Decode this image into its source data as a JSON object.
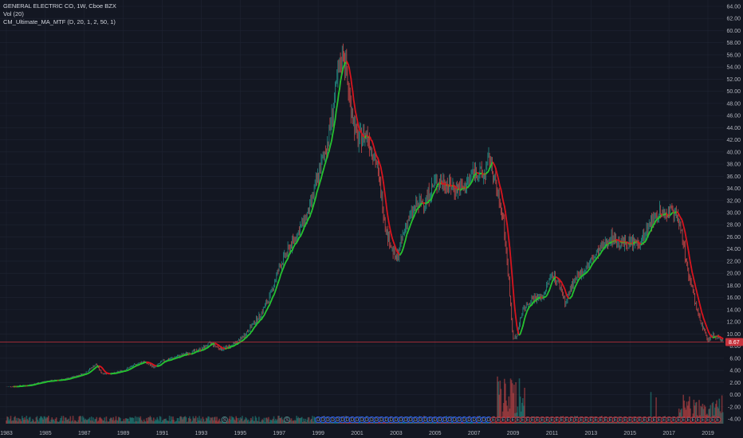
{
  "header": {
    "symbol_line": "GENERAL ELECTRIC CO, 1W, Cboe BZX",
    "volume_line": "Vol (20)",
    "indicator_line": "CM_Ultimate_MA_MTF (D, 20, 1, 2, 50, 1)"
  },
  "price_label": "8.67",
  "colors": {
    "background": "#131722",
    "grid": "#1f2433",
    "ma_up": "#26c030",
    "ma_down": "#d7141e",
    "candle_up": "#26a69a",
    "candle_down": "#ef5350",
    "price_line": "#c8323c",
    "price_tag": "#c8323c",
    "marker_dividend": "#2962ff",
    "marker_split": "#4c8d8a",
    "marker_earnings": "#c8323c"
  },
  "markers": {
    "split_label": "S",
    "dividend_label": "D",
    "earnings_label": "E"
  },
  "chart_data": {
    "type": "line",
    "title": "GENERAL ELECTRIC CO, 1W, Cboe BZX",
    "x_ticks": [
      "1983",
      "1985",
      "1987",
      "1989",
      "1991",
      "1993",
      "1995",
      "1997",
      "1999",
      "2001",
      "2003",
      "2005",
      "2007",
      "2009",
      "2011",
      "2013",
      "2015",
      "2017",
      "2019"
    ],
    "y_ticks": [
      "-4.00",
      "-2.00",
      "0.00",
      "2.00",
      "4.00",
      "6.00",
      "8.00",
      "10.00",
      "12.00",
      "14.00",
      "16.00",
      "18.00",
      "20.00",
      "22.00",
      "24.00",
      "26.00",
      "28.00",
      "30.00",
      "32.00",
      "34.00",
      "36.00",
      "38.00",
      "40.00",
      "42.00",
      "44.00",
      "46.00",
      "48.00",
      "50.00",
      "52.00",
      "54.00",
      "56.00",
      "58.00",
      "60.00",
      "62.00",
      "64.00"
    ],
    "xlim": [
      1983.0,
      2019.8
    ],
    "ylim": [
      -4,
      64
    ],
    "current_price": 8.67,
    "series": [
      {
        "name": "GENERAL ELECTRIC CO",
        "x": [
          1983.0,
          1984.0,
          1985.0,
          1986.0,
          1987.0,
          1987.6,
          1987.9,
          1988.5,
          1989.0,
          1990.0,
          1990.6,
          1991.0,
          1992.0,
          1993.0,
          1993.5,
          1994.0,
          1994.5,
          1995.0,
          1995.5,
          1996.0,
          1996.5,
          1997.0,
          1997.5,
          1998.0,
          1998.5,
          1999.0,
          1999.5,
          2000.0,
          2000.3,
          2000.6,
          2001.0,
          2001.5,
          2002.0,
          2002.5,
          2003.0,
          2003.5,
          2004.0,
          2004.5,
          2005.0,
          2005.5,
          2006.0,
          2006.5,
          2007.0,
          2007.5,
          2007.8,
          2008.0,
          2008.5,
          2008.8,
          2009.0,
          2009.2,
          2009.5,
          2010.0,
          2010.5,
          2011.0,
          2011.4,
          2011.7,
          2012.0,
          2012.5,
          2013.0,
          2013.5,
          2014.0,
          2014.5,
          2015.0,
          2015.5,
          2016.0,
          2016.5,
          2017.0,
          2017.5,
          2018.0,
          2018.5,
          2019.0,
          2019.3,
          2019.6
        ],
        "y": [
          1.3,
          1.5,
          2.2,
          2.5,
          3.5,
          5.0,
          3.5,
          3.5,
          4.0,
          5.5,
          4.5,
          5.5,
          6.5,
          7.5,
          8.5,
          7.5,
          8.0,
          9.0,
          11.0,
          13.0,
          16.0,
          21.0,
          24.0,
          27.0,
          30.0,
          36.0,
          42.0,
          52.0,
          57.0,
          49.0,
          42.0,
          43.0,
          38.0,
          27.0,
          22.0,
          28.0,
          31.0,
          32.0,
          35.0,
          35.0,
          34.0,
          34.0,
          37.0,
          36.0,
          39.0,
          36.0,
          29.0,
          18.0,
          9.0,
          10.0,
          14.0,
          16.0,
          16.0,
          20.0,
          18.0,
          15.0,
          18.0,
          20.0,
          22.0,
          24.0,
          26.0,
          25.0,
          25.0,
          25.0,
          28.0,
          30.0,
          30.0,
          29.0,
          20.0,
          13.0,
          9.0,
          10.0,
          9.0
        ]
      }
    ]
  }
}
